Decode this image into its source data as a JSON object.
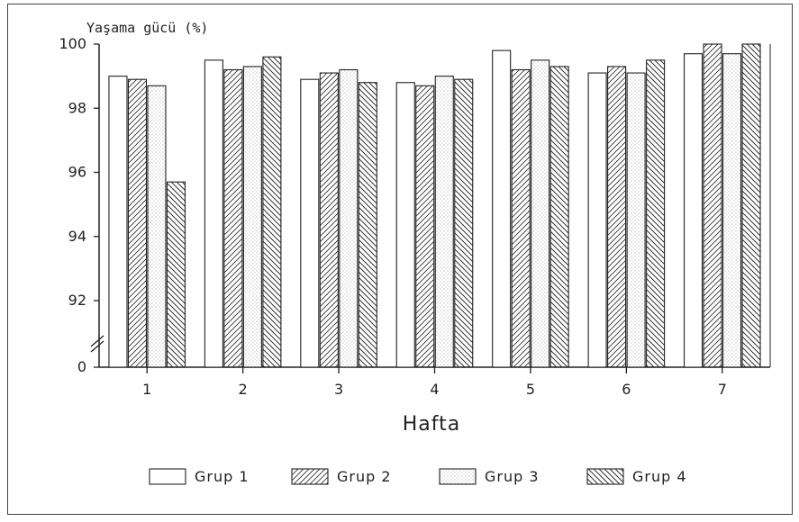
{
  "chart_data": {
    "type": "bar",
    "ylabel": "Yaşama gücü (%)",
    "xlabel": "Hafta",
    "categories": [
      "1",
      "2",
      "3",
      "4",
      "5",
      "6",
      "7"
    ],
    "y_ticks": [
      "100",
      "98",
      "96",
      "94",
      "92",
      "0"
    ],
    "y_axis_break": "between 0 and 92",
    "ylim": [
      90,
      100
    ],
    "legend_position": "bottom",
    "series": [
      {
        "name": "Grup 1",
        "pattern": "blank",
        "values": [
          99.0,
          99.5,
          98.9,
          98.8,
          99.8,
          99.1,
          99.7
        ]
      },
      {
        "name": "Grup 2",
        "pattern": "hatch-forward",
        "values": [
          98.9,
          99.2,
          99.1,
          98.7,
          99.2,
          99.3,
          100.0
        ]
      },
      {
        "name": "Grup 3",
        "pattern": "dotted",
        "values": [
          98.7,
          99.3,
          99.2,
          99.0,
          99.5,
          99.1,
          99.7
        ]
      },
      {
        "name": "Grup 4",
        "pattern": "hatch-backward",
        "values": [
          95.7,
          99.6,
          98.8,
          98.9,
          99.3,
          99.5,
          100.0
        ]
      }
    ]
  }
}
